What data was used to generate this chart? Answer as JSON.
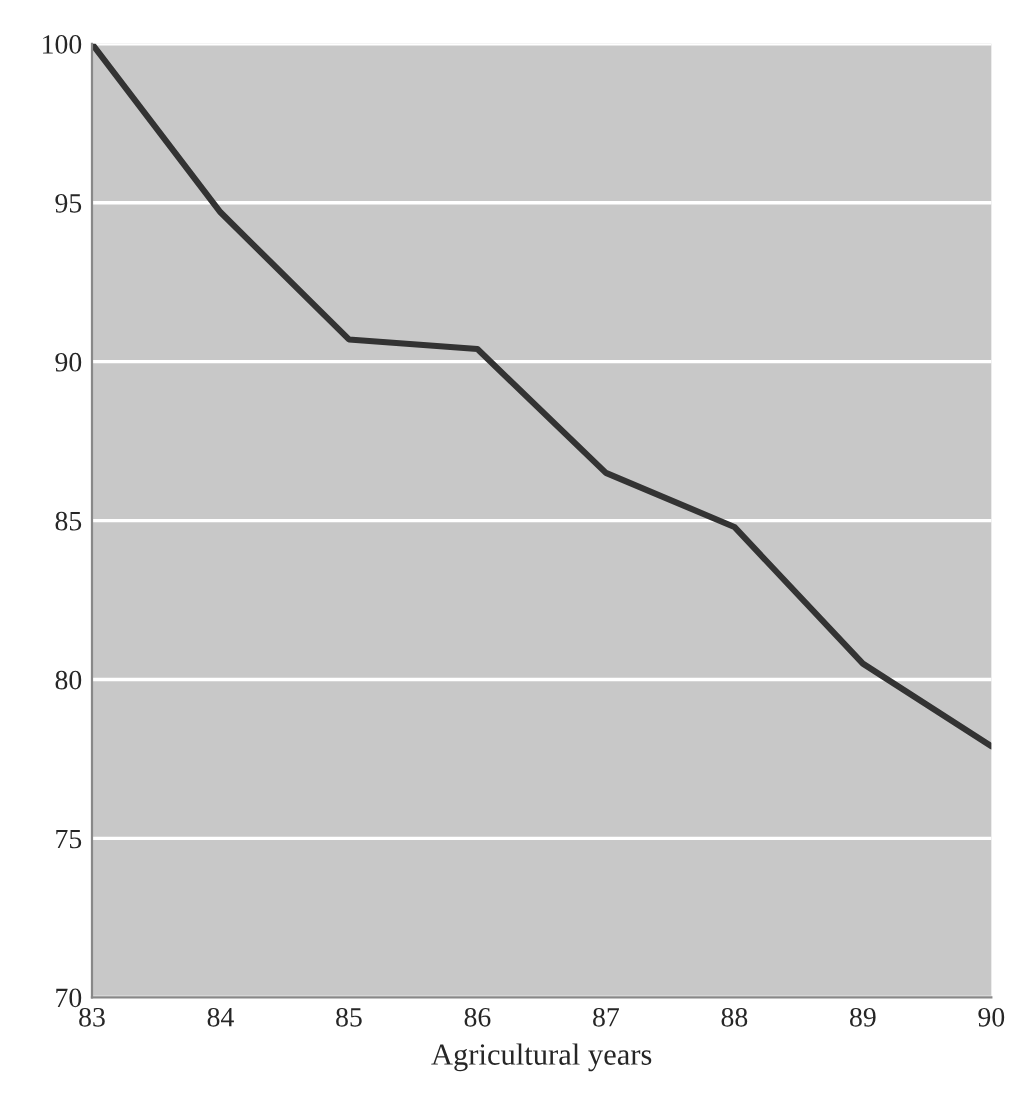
{
  "chart_data": {
    "type": "line",
    "xlabel": "Agricultural years",
    "x": [
      83,
      84,
      85,
      86,
      87,
      88,
      89,
      90
    ],
    "series": [
      {
        "color": "#333333",
        "values": [
          100,
          94.7,
          90.7,
          90.4,
          86.5,
          84.8,
          80.5,
          77.9
        ]
      }
    ],
    "xlim": [
      83,
      90
    ],
    "ylim": [
      70,
      100
    ],
    "xticks": [
      83,
      84,
      85,
      86,
      87,
      88,
      89,
      90
    ],
    "yticks": [
      70,
      75,
      80,
      85,
      90,
      95,
      100
    ],
    "grid": "y",
    "marker": "none",
    "line_style": "solid"
  }
}
